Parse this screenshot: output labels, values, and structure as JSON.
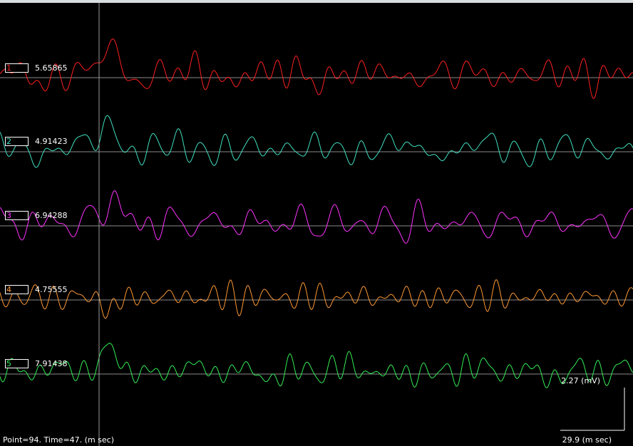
{
  "channels": [
    {
      "id": "1",
      "value": "5.65865",
      "color": "#ff2020"
    },
    {
      "id": "2",
      "value": "4.91423",
      "color": "#40e0c0"
    },
    {
      "id": "3",
      "value": "6.94288",
      "color": "#ff33ff"
    },
    {
      "id": "4",
      "value": "4.75555",
      "color": "#ff9933"
    },
    {
      "id": "5",
      "value": "7.91438",
      "color": "#33ee55"
    }
  ],
  "status": {
    "text": "Point=94.  Time=47. (m sec)"
  },
  "scale": {
    "amplitude": "2.27 (mV)",
    "time": "29.9 (m sec)"
  },
  "cursor": {
    "point": 94,
    "time_ms": 47
  },
  "colors": {
    "background": "#000000",
    "baseline": "#8a8a8a",
    "cursor": "#9a9a9a",
    "scale": "#ffffff"
  }
}
